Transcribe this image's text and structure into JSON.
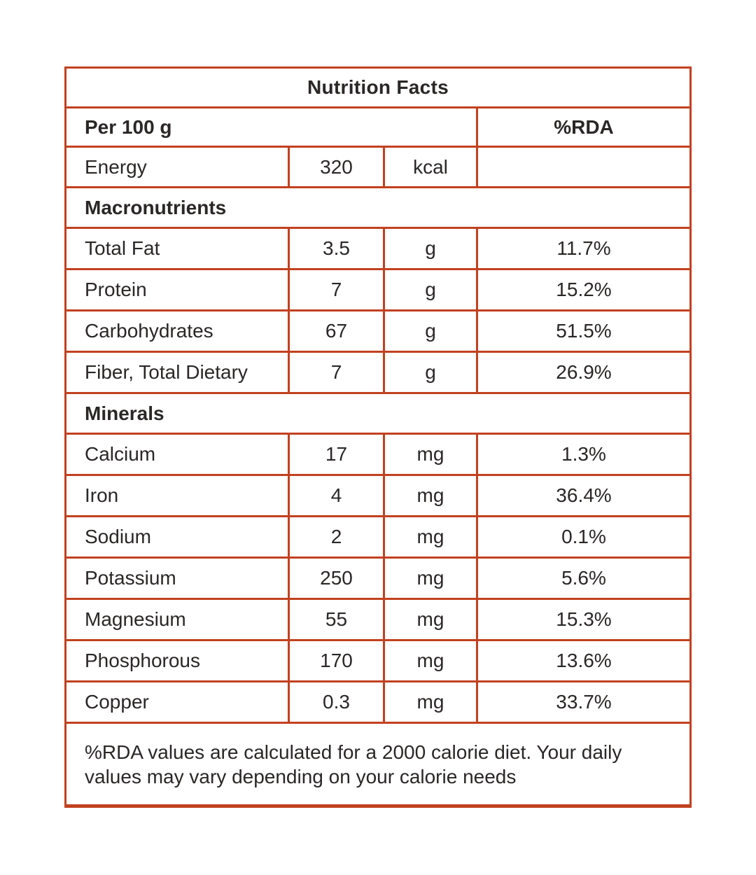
{
  "colors": {
    "border_accent": "#c2411f",
    "text": "#2a2726",
    "background": "#ffffff"
  },
  "table": {
    "title": "Nutrition Facts",
    "serving_header": "Per 100 g",
    "rda_header": "%RDA",
    "energy": {
      "name": "Energy",
      "value": "320",
      "unit": "kcal",
      "rda": ""
    },
    "sections": [
      {
        "label": "Macronutrients",
        "rows": [
          {
            "name": "Total Fat",
            "value": "3.5",
            "unit": "g",
            "rda": "11.7%"
          },
          {
            "name": "Protein",
            "value": "7",
            "unit": "g",
            "rda": "15.2%"
          },
          {
            "name": "Carbohydrates",
            "value": "67",
            "unit": "g",
            "rda": "51.5%"
          },
          {
            "name": "Fiber, Total Dietary",
            "value": "7",
            "unit": "g",
            "rda": "26.9%"
          }
        ]
      },
      {
        "label": "Minerals",
        "rows": [
          {
            "name": "Calcium",
            "value": "17",
            "unit": "mg",
            "rda": "1.3%"
          },
          {
            "name": "Iron",
            "value": "4",
            "unit": "mg",
            "rda": "36.4%"
          },
          {
            "name": "Sodium",
            "value": "2",
            "unit": "mg",
            "rda": "0.1%"
          },
          {
            "name": "Potassium",
            "value": "250",
            "unit": "mg",
            "rda": "5.6%"
          },
          {
            "name": "Magnesium",
            "value": "55",
            "unit": "mg",
            "rda": "15.3%"
          },
          {
            "name": "Phosphorous",
            "value": "170",
            "unit": "mg",
            "rda": "13.6%"
          },
          {
            "name": "Copper",
            "value": "0.3",
            "unit": "mg",
            "rda": "33.7%"
          }
        ]
      }
    ],
    "footnote": "%RDA values are calculated for a 2000 calorie diet. Your daily values may vary depending on your calorie needs"
  }
}
